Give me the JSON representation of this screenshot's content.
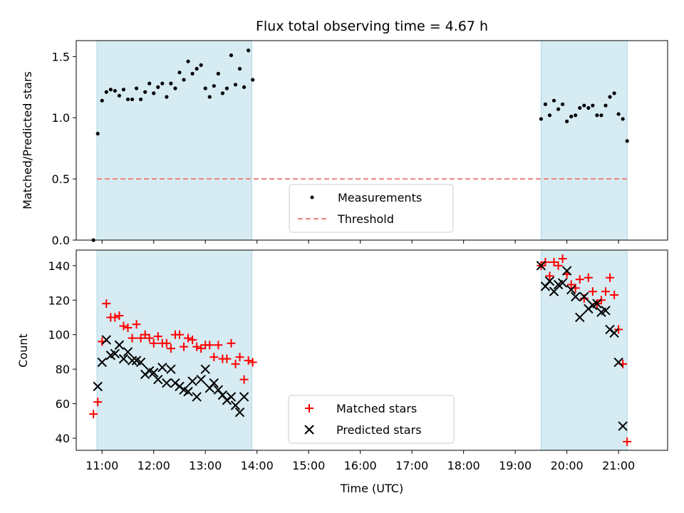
{
  "colors": {
    "shade": "#add8e6",
    "measurement": "#000000",
    "threshold": "#f08080",
    "matched": "#ff0000",
    "predicted": "#000000"
  },
  "figure": {
    "title": "Flux total observing time = 4.67 h",
    "xlabel": "Time (UTC)"
  },
  "chart_data": [
    {
      "type": "scatter",
      "ylabel": "Matched/Predicted stars",
      "xlim": [
        "10:30",
        "21:57"
      ],
      "ylim": [
        0,
        1.63
      ],
      "yticks": [
        0.0,
        0.5,
        1.0,
        1.5
      ],
      "ytick_labels": [
        "0.0",
        "0.5",
        "1.0",
        "1.5"
      ],
      "grid": false,
      "legend_position": "lower center",
      "shaded_intervals": [
        [
          "10:54",
          "13:54"
        ],
        [
          "19:30",
          "21:10"
        ]
      ],
      "series": [
        {
          "name": "Measurements",
          "type": "scatter",
          "points": [
            [
              "10:50",
              0.0
            ],
            [
              "10:55",
              0.87
            ],
            [
              "11:00",
              1.14
            ],
            [
              "11:05",
              1.21
            ],
            [
              "11:10",
              1.23
            ],
            [
              "11:15",
              1.22
            ],
            [
              "11:20",
              1.18
            ],
            [
              "11:25",
              1.23
            ],
            [
              "11:30",
              1.15
            ],
            [
              "11:35",
              1.15
            ],
            [
              "11:40",
              1.24
            ],
            [
              "11:45",
              1.15
            ],
            [
              "11:50",
              1.21
            ],
            [
              "11:55",
              1.28
            ],
            [
              "12:00",
              1.2
            ],
            [
              "12:05",
              1.25
            ],
            [
              "12:10",
              1.28
            ],
            [
              "12:15",
              1.17
            ],
            [
              "12:20",
              1.28
            ],
            [
              "12:25",
              1.24
            ],
            [
              "12:30",
              1.37
            ],
            [
              "12:35",
              1.31
            ],
            [
              "12:40",
              1.46
            ],
            [
              "12:45",
              1.36
            ],
            [
              "12:50",
              1.4
            ],
            [
              "12:55",
              1.43
            ],
            [
              "13:00",
              1.24
            ],
            [
              "13:05",
              1.17
            ],
            [
              "13:10",
              1.26
            ],
            [
              "13:15",
              1.36
            ],
            [
              "13:20",
              1.2
            ],
            [
              "13:25",
              1.24
            ],
            [
              "13:30",
              1.51
            ],
            [
              "13:35",
              1.27
            ],
            [
              "13:40",
              1.4
            ],
            [
              "13:45",
              1.25
            ],
            [
              "13:50",
              1.55
            ],
            [
              "13:55",
              1.31
            ],
            [
              "19:30",
              0.99
            ],
            [
              "19:35",
              1.11
            ],
            [
              "19:40",
              1.02
            ],
            [
              "19:45",
              1.14
            ],
            [
              "19:50",
              1.07
            ],
            [
              "19:55",
              1.11
            ],
            [
              "20:00",
              0.97
            ],
            [
              "20:05",
              1.01
            ],
            [
              "20:10",
              1.02
            ],
            [
              "20:15",
              1.08
            ],
            [
              "20:20",
              1.1
            ],
            [
              "20:25",
              1.08
            ],
            [
              "20:30",
              1.1
            ],
            [
              "20:35",
              1.02
            ],
            [
              "20:40",
              1.02
            ],
            [
              "20:45",
              1.1
            ],
            [
              "20:50",
              1.17
            ],
            [
              "20:55",
              1.2
            ],
            [
              "21:00",
              1.03
            ],
            [
              "21:05",
              0.99
            ],
            [
              "21:10",
              0.81
            ]
          ]
        },
        {
          "name": "Threshold",
          "type": "line",
          "style": "dashed",
          "points": [
            [
              "10:54",
              0.5
            ],
            [
              "21:10",
              0.5
            ]
          ]
        }
      ]
    },
    {
      "type": "scatter",
      "ylabel": "Count",
      "xlim": [
        "10:30",
        "21:57"
      ],
      "ylim": [
        33,
        149
      ],
      "yticks": [
        40,
        60,
        80,
        100,
        120,
        140
      ],
      "ytick_labels": [
        "40",
        "60",
        "80",
        "100",
        "120",
        "140"
      ],
      "xticks": [
        "11:00",
        "12:00",
        "13:00",
        "14:00",
        "15:00",
        "16:00",
        "17:00",
        "18:00",
        "19:00",
        "20:00",
        "21:00"
      ],
      "xtick_labels": [
        "11:00",
        "12:00",
        "13:00",
        "14:00",
        "15:00",
        "16:00",
        "17:00",
        "18:00",
        "19:00",
        "20:00",
        "21:00"
      ],
      "grid": false,
      "legend_position": "lower center",
      "shaded_intervals": [
        [
          "10:54",
          "13:54"
        ],
        [
          "19:30",
          "21:10"
        ]
      ],
      "series": [
        {
          "name": "Matched stars",
          "marker": "plus",
          "points": [
            [
              "10:50",
              54
            ],
            [
              "10:55",
              61
            ],
            [
              "11:00",
              96
            ],
            [
              "11:05",
              118
            ],
            [
              "11:10",
              110
            ],
            [
              "11:15",
              110
            ],
            [
              "11:20",
              111
            ],
            [
              "11:25",
              105
            ],
            [
              "11:30",
              104
            ],
            [
              "11:35",
              98
            ],
            [
              "11:40",
              106
            ],
            [
              "11:45",
              98
            ],
            [
              "11:50",
              100
            ],
            [
              "11:55",
              98
            ],
            [
              "12:00",
              95
            ],
            [
              "12:05",
              99
            ],
            [
              "12:10",
              95
            ],
            [
              "12:15",
              95
            ],
            [
              "12:20",
              92
            ],
            [
              "12:25",
              100
            ],
            [
              "12:30",
              100
            ],
            [
              "12:35",
              93
            ],
            [
              "12:40",
              98
            ],
            [
              "12:45",
              97
            ],
            [
              "12:50",
              93
            ],
            [
              "12:55",
              92
            ],
            [
              "13:00",
              94
            ],
            [
              "13:05",
              94
            ],
            [
              "13:10",
              87
            ],
            [
              "13:15",
              94
            ],
            [
              "13:20",
              86
            ],
            [
              "13:25",
              86
            ],
            [
              "13:30",
              95
            ],
            [
              "13:35",
              83
            ],
            [
              "13:40",
              87
            ],
            [
              "13:45",
              74
            ],
            [
              "13:50",
              85
            ],
            [
              "13:55",
              84
            ],
            [
              "19:30",
              140
            ],
            [
              "19:35",
              142
            ],
            [
              "19:40",
              134
            ],
            [
              "19:45",
              142
            ],
            [
              "19:50",
              140
            ],
            [
              "19:55",
              144
            ],
            [
              "20:00",
              135
            ],
            [
              "20:05",
              129
            ],
            [
              "20:10",
              127
            ],
            [
              "20:15",
              132
            ],
            [
              "20:20",
              121
            ],
            [
              "20:25",
              133
            ],
            [
              "20:30",
              125
            ],
            [
              "20:35",
              118
            ],
            [
              "20:40",
              120
            ],
            [
              "20:45",
              125
            ],
            [
              "20:50",
              133
            ],
            [
              "20:55",
              123
            ],
            [
              "21:00",
              103
            ],
            [
              "21:05",
              83
            ],
            [
              "21:10",
              38
            ]
          ]
        },
        {
          "name": "Predicted stars",
          "marker": "x",
          "points": [
            [
              "10:55",
              70
            ],
            [
              "11:00",
              84
            ],
            [
              "11:05",
              97
            ],
            [
              "11:10",
              88
            ],
            [
              "11:15",
              89
            ],
            [
              "11:20",
              94
            ],
            [
              "11:25",
              86
            ],
            [
              "11:30",
              90
            ],
            [
              "11:35",
              85
            ],
            [
              "11:40",
              85
            ],
            [
              "11:45",
              84
            ],
            [
              "11:50",
              77
            ],
            [
              "11:55",
              79
            ],
            [
              "12:00",
              78
            ],
            [
              "12:05",
              74
            ],
            [
              "12:10",
              81
            ],
            [
              "12:15",
              72
            ],
            [
              "12:20",
              80
            ],
            [
              "12:25",
              72
            ],
            [
              "12:30",
              70
            ],
            [
              "12:35",
              68
            ],
            [
              "12:40",
              67
            ],
            [
              "12:45",
              73
            ],
            [
              "12:50",
              64
            ],
            [
              "12:55",
              74
            ],
            [
              "13:00",
              80
            ],
            [
              "13:05",
              69
            ],
            [
              "13:10",
              72
            ],
            [
              "13:15",
              68
            ],
            [
              "13:20",
              65
            ],
            [
              "13:25",
              62
            ],
            [
              "13:30",
              64
            ],
            [
              "13:35",
              59
            ],
            [
              "13:40",
              55
            ],
            [
              "13:45",
              64
            ],
            [
              "19:30",
              140
            ],
            [
              "19:35",
              128
            ],
            [
              "19:40",
              131
            ],
            [
              "19:45",
              125
            ],
            [
              "19:50",
              129
            ],
            [
              "19:55",
              130
            ],
            [
              "20:00",
              137
            ],
            [
              "20:05",
              126
            ],
            [
              "20:10",
              122
            ],
            [
              "20:15",
              110
            ],
            [
              "20:20",
              122
            ],
            [
              "20:25",
              115
            ],
            [
              "20:30",
              117
            ],
            [
              "20:35",
              118
            ],
            [
              "20:40",
              113
            ],
            [
              "20:45",
              114
            ],
            [
              "20:50",
              103
            ],
            [
              "20:55",
              101
            ],
            [
              "21:00",
              84
            ],
            [
              "21:05",
              47
            ]
          ]
        }
      ]
    }
  ]
}
